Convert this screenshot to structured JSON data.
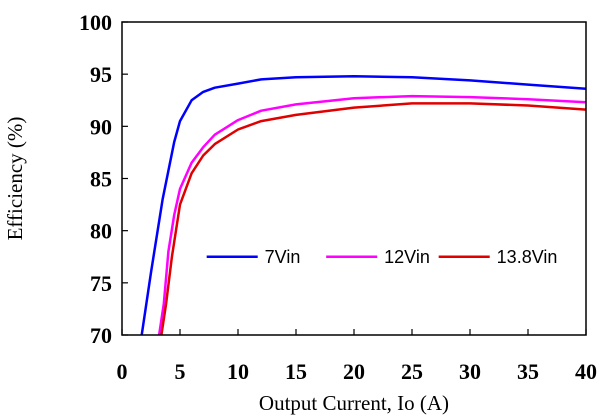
{
  "chart_data": {
    "type": "line",
    "xlabel": "Output Current, Io (A)",
    "ylabel": "Efficiency (%)",
    "xlim": [
      0,
      40
    ],
    "ylim": [
      70,
      100
    ],
    "x_ticks": [
      0,
      5,
      10,
      15,
      20,
      25,
      30,
      35,
      40
    ],
    "y_ticks": [
      70,
      75,
      80,
      85,
      90,
      95,
      100
    ],
    "grid": false,
    "legend_position": "center-right",
    "series": [
      {
        "name": "7Vin",
        "color": "#0000ff",
        "points": [
          [
            1.7,
            70
          ],
          [
            2.5,
            76
          ],
          [
            3.5,
            83
          ],
          [
            4.5,
            88.5
          ],
          [
            5,
            90.5
          ],
          [
            6,
            92.5
          ],
          [
            7,
            93.3
          ],
          [
            8,
            93.7
          ],
          [
            10,
            94.1
          ],
          [
            12,
            94.5
          ],
          [
            15,
            94.7
          ],
          [
            20,
            94.8
          ],
          [
            25,
            94.7
          ],
          [
            30,
            94.4
          ],
          [
            35,
            94
          ],
          [
            40,
            93.6
          ]
        ]
      },
      {
        "name": "12Vin",
        "color": "#ff00ff",
        "points": [
          [
            3.2,
            70
          ],
          [
            3.6,
            73
          ],
          [
            4,
            78
          ],
          [
            4.5,
            81.5
          ],
          [
            5,
            84
          ],
          [
            6,
            86.5
          ],
          [
            7,
            88
          ],
          [
            8,
            89.2
          ],
          [
            10,
            90.6
          ],
          [
            12,
            91.5
          ],
          [
            15,
            92.1
          ],
          [
            20,
            92.7
          ],
          [
            25,
            92.9
          ],
          [
            30,
            92.8
          ],
          [
            35,
            92.6
          ],
          [
            40,
            92.3
          ]
        ]
      },
      {
        "name": "13.8Vin",
        "color": "#e00000",
        "points": [
          [
            3.4,
            70
          ],
          [
            3.8,
            73
          ],
          [
            4.3,
            77.5
          ],
          [
            5,
            82.5
          ],
          [
            6,
            85.5
          ],
          [
            7,
            87.2
          ],
          [
            8,
            88.3
          ],
          [
            10,
            89.7
          ],
          [
            12,
            90.5
          ],
          [
            15,
            91.1
          ],
          [
            20,
            91.8
          ],
          [
            25,
            92.2
          ],
          [
            30,
            92.2
          ],
          [
            35,
            92
          ],
          [
            40,
            91.6
          ]
        ]
      }
    ]
  }
}
